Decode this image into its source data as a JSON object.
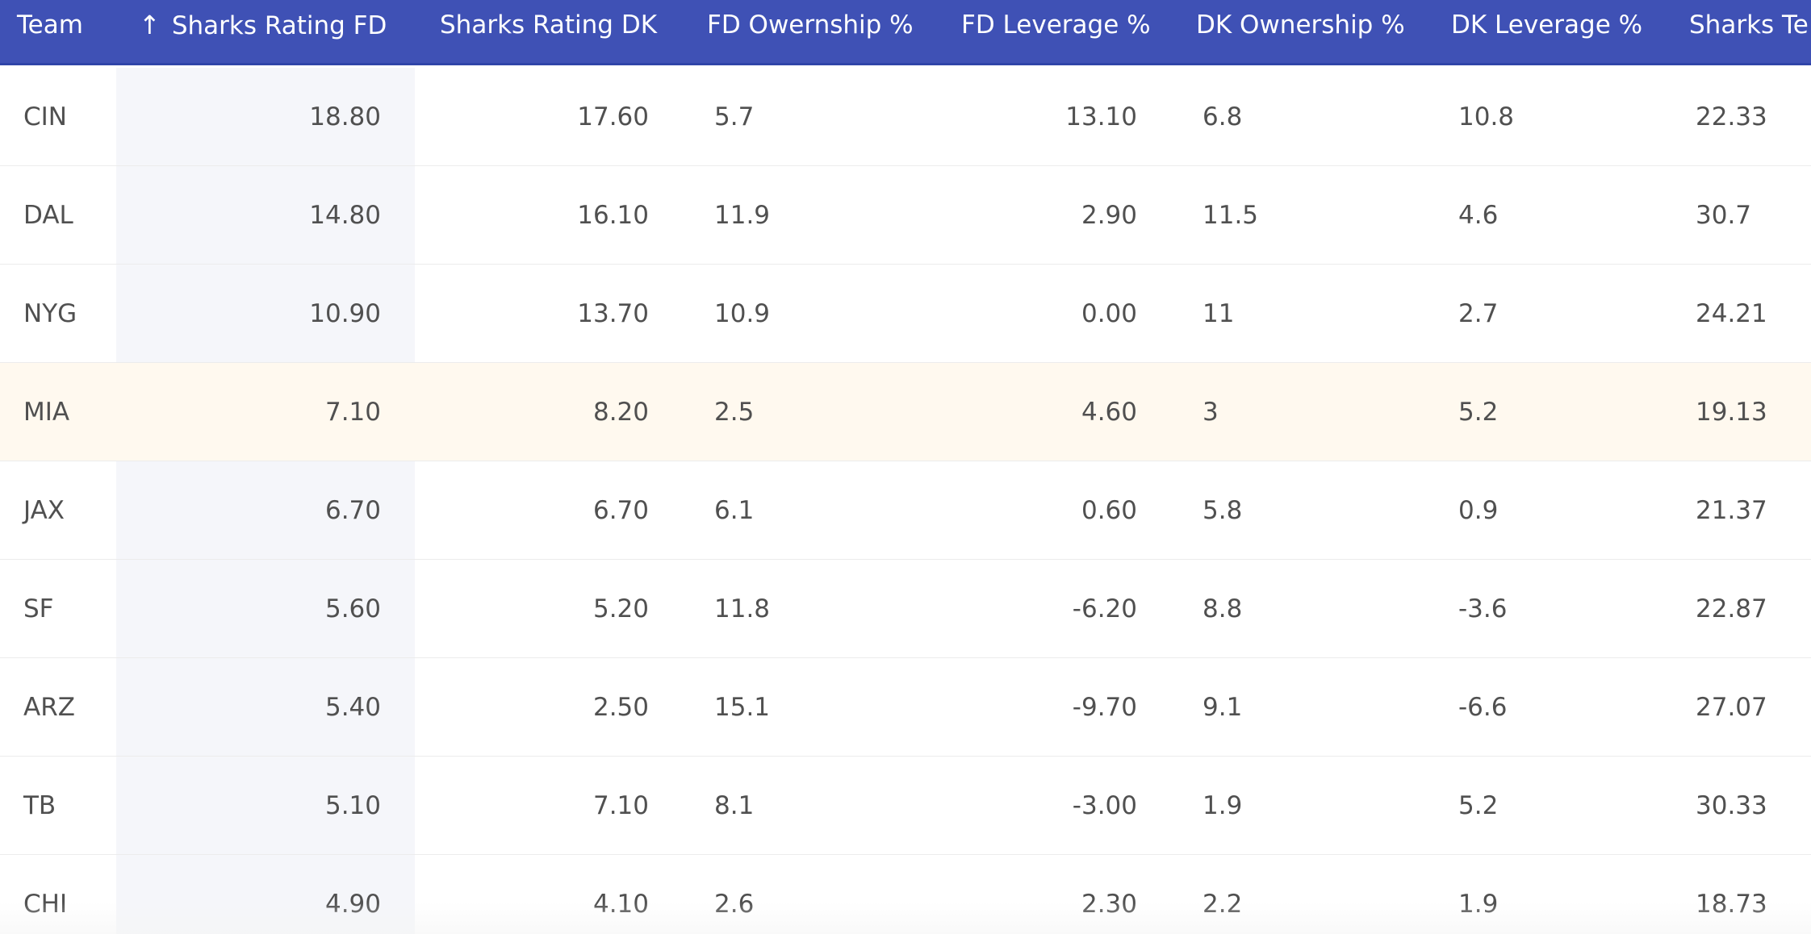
{
  "table": {
    "columns": [
      {
        "key": "team",
        "label": "Team"
      },
      {
        "key": "sharks_rating_fd",
        "label": "Sharks Rating FD",
        "sort_icon": "arrow-up-icon",
        "sort_glyph": "↑"
      },
      {
        "key": "sharks_rating_dk",
        "label": "Sharks Rating DK"
      },
      {
        "key": "fd_ownership",
        "label": "FD Owernship %"
      },
      {
        "key": "fd_leverage",
        "label": "FD Leverage %"
      },
      {
        "key": "dk_ownership",
        "label": "DK Ownership %"
      },
      {
        "key": "dk_leverage",
        "label": "DK Leverage %"
      },
      {
        "key": "sharks_te",
        "label": "Sharks Te"
      }
    ],
    "sorted_by": "sharks_rating_fd",
    "sort_direction": "ascending-arrow",
    "highlight_row_index": 3,
    "colors": {
      "header_bg": "#3f51b5",
      "header_text": "#ffffff",
      "sorted_column_bg": "#f5f6fa",
      "highlight_row_bg": "#fff9ef"
    },
    "rows": [
      {
        "team": "CIN",
        "sharks_rating_fd": "18.80",
        "sharks_rating_dk": "17.60",
        "fd_ownership": "5.7",
        "fd_leverage": "13.10",
        "dk_ownership": "6.8",
        "dk_leverage": "10.8",
        "sharks_te": "22.33"
      },
      {
        "team": "DAL",
        "sharks_rating_fd": "14.80",
        "sharks_rating_dk": "16.10",
        "fd_ownership": "11.9",
        "fd_leverage": "2.90",
        "dk_ownership": "11.5",
        "dk_leverage": "4.6",
        "sharks_te": "30.7"
      },
      {
        "team": "NYG",
        "sharks_rating_fd": "10.90",
        "sharks_rating_dk": "13.70",
        "fd_ownership": "10.9",
        "fd_leverage": "0.00",
        "dk_ownership": "11",
        "dk_leverage": "2.7",
        "sharks_te": "24.21"
      },
      {
        "team": "MIA",
        "sharks_rating_fd": "7.10",
        "sharks_rating_dk": "8.20",
        "fd_ownership": "2.5",
        "fd_leverage": "4.60",
        "dk_ownership": "3",
        "dk_leverage": "5.2",
        "sharks_te": "19.13"
      },
      {
        "team": "JAX",
        "sharks_rating_fd": "6.70",
        "sharks_rating_dk": "6.70",
        "fd_ownership": "6.1",
        "fd_leverage": "0.60",
        "dk_ownership": "5.8",
        "dk_leverage": "0.9",
        "sharks_te": "21.37"
      },
      {
        "team": "SF",
        "sharks_rating_fd": "5.60",
        "sharks_rating_dk": "5.20",
        "fd_ownership": "11.8",
        "fd_leverage": "-6.20",
        "dk_ownership": "8.8",
        "dk_leverage": "-3.6",
        "sharks_te": "22.87"
      },
      {
        "team": "ARZ",
        "sharks_rating_fd": "5.40",
        "sharks_rating_dk": "2.50",
        "fd_ownership": "15.1",
        "fd_leverage": "-9.70",
        "dk_ownership": "9.1",
        "dk_leverage": "-6.6",
        "sharks_te": "27.07"
      },
      {
        "team": "TB",
        "sharks_rating_fd": "5.10",
        "sharks_rating_dk": "7.10",
        "fd_ownership": "8.1",
        "fd_leverage": "-3.00",
        "dk_ownership": "1.9",
        "dk_leverage": "5.2",
        "sharks_te": "30.33"
      },
      {
        "team": "CHI",
        "sharks_rating_fd": "4.90",
        "sharks_rating_dk": "4.10",
        "fd_ownership": "2.6",
        "fd_leverage": "2.30",
        "dk_ownership": "2.2",
        "dk_leverage": "1.9",
        "sharks_te": "18.73"
      }
    ]
  }
}
